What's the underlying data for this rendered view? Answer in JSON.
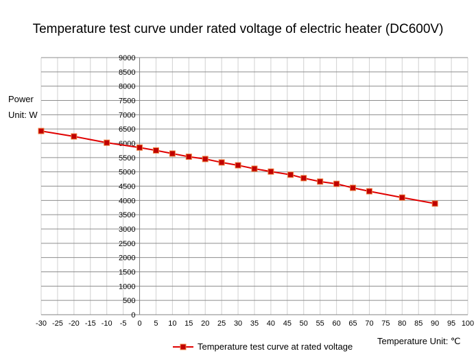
{
  "chart_data": {
    "type": "line",
    "title": "Temperature test curve under rated voltage of electric heater (DC600V)",
    "ylabel_line1": "Power",
    "ylabel_line2": "Unit: W",
    "xlabel": "Temperature   Unit: ℃",
    "xlim": [
      -30,
      100
    ],
    "ylim": [
      0,
      9000
    ],
    "xticks": [
      -30,
      -25,
      -20,
      -15,
      -10,
      -5,
      0,
      5,
      10,
      15,
      20,
      25,
      30,
      35,
      40,
      45,
      50,
      55,
      60,
      65,
      70,
      75,
      80,
      85,
      90,
      95,
      100
    ],
    "yticks": [
      0,
      500,
      1000,
      1500,
      2000,
      2500,
      3000,
      3500,
      4000,
      4500,
      5000,
      5500,
      6000,
      6500,
      7000,
      7500,
      8000,
      8500,
      9000
    ],
    "grid": true,
    "legend_position": "bottom",
    "series": [
      {
        "name": "Temperature test curve at rated voltage",
        "color": "#e00000",
        "marker_color": "#c00000",
        "x": [
          -30,
          -20,
          -10,
          0,
          5,
          10,
          15,
          20,
          25,
          30,
          35,
          40,
          46,
          50,
          55,
          60,
          65,
          70,
          80,
          90
        ],
        "y": [
          6430,
          6240,
          6020,
          5850,
          5750,
          5640,
          5530,
          5450,
          5330,
          5230,
          5110,
          5010,
          4900,
          4780,
          4660,
          4580,
          4440,
          4320,
          4100,
          3890
        ]
      }
    ]
  }
}
